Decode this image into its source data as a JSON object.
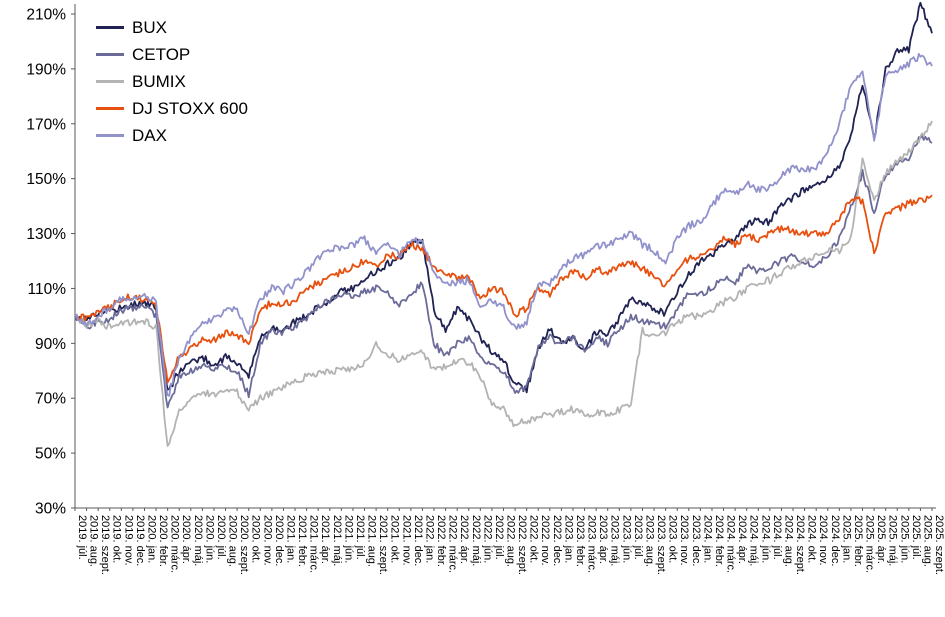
{
  "chart_data": {
    "type": "line",
    "title": "",
    "xlabel": "",
    "ylabel": "",
    "ylim": [
      30,
      210
    ],
    "yticks": [
      30,
      50,
      70,
      90,
      110,
      130,
      150,
      170,
      190,
      210
    ],
    "ytick_suffix": "%",
    "grid": false,
    "legend_position": "top-left",
    "axis_color": "#595959",
    "categories": [
      "2019. júl.",
      "2019. aug.",
      "2019. szept.",
      "2019. okt.",
      "2019. nov.",
      "2019. dec.",
      "2020. jan.",
      "2020. febr.",
      "2020. márc.",
      "2020. ápr.",
      "2020. máj.",
      "2020. jún.",
      "2020. júl.",
      "2020. aug.",
      "2020. szept.",
      "2020. okt.",
      "2020. nov.",
      "2020. dec.",
      "2021. jan.",
      "2021. febr.",
      "2021. márc.",
      "2021. ápr.",
      "2021. máj.",
      "2021. jún.",
      "2021. júl.",
      "2021. aug.",
      "2021. szept.",
      "2021. okt.",
      "2021. nov.",
      "2021. dec.",
      "2022. jan.",
      "2022. febr.",
      "2022. márc.",
      "2022. ápr.",
      "2022. máj.",
      "2022. jún.",
      "2022. júl.",
      "2022. aug.",
      "2022. szept.",
      "2022. okt.",
      "2022. nov.",
      "2022. dec.",
      "2023. jan.",
      "2023. febr.",
      "2023. márc.",
      "2023. ápr.",
      "2023. máj.",
      "2023. jún.",
      "2023. júl.",
      "2023. aug.",
      "2023. szept.",
      "2023. okt.",
      "2023. nov.",
      "2023. dec.",
      "2024. jan.",
      "2024. febr.",
      "2024. márc.",
      "2024. ápr.",
      "2024. máj.",
      "2024. jún.",
      "2024. júl.",
      "2024. aug.",
      "2024. szept.",
      "2024. okt.",
      "2024. nov.",
      "2024. dec.",
      "2025. jan.",
      "2025. febr.",
      "2025. márc.",
      "2025. ápr.",
      "2025. máj.",
      "2025. jún.",
      "2025. júl.",
      "2025. aug.",
      "2025. szept."
    ],
    "series": [
      {
        "name": "BUX",
        "color": "#1F2252",
        "values": [
          100,
          99,
          101,
          102,
          103,
          104,
          105,
          103,
          72,
          80,
          83,
          85,
          82,
          85,
          83,
          78,
          92,
          96,
          95,
          98,
          100,
          103,
          106,
          109,
          110,
          114,
          116,
          119,
          121,
          126,
          128,
          102,
          95,
          103,
          99,
          92,
          87,
          84,
          75,
          73,
          88,
          95,
          90,
          92,
          87,
          94,
          93,
          99,
          106,
          104,
          103,
          101,
          109,
          115,
          120,
          122,
          126,
          128,
          133,
          135,
          134,
          141,
          143,
          146,
          147,
          150,
          154,
          166,
          185,
          164,
          190,
          196,
          197,
          214,
          203
        ]
      },
      {
        "name": "CETOP",
        "color": "#6B6B99",
        "values": [
          100,
          96,
          98,
          99,
          102,
          103,
          104,
          100,
          66,
          78,
          80,
          82,
          80,
          82,
          80,
          71,
          90,
          95,
          94,
          96,
          99,
          103,
          106,
          108,
          107,
          109,
          110,
          108,
          104,
          108,
          112,
          90,
          85,
          90,
          92,
          85,
          82,
          80,
          72,
          74,
          88,
          92,
          90,
          92,
          88,
          92,
          90,
          95,
          100,
          98,
          97,
          96,
          102,
          108,
          108,
          110,
          114,
          112,
          118,
          116,
          118,
          120,
          122,
          120,
          118,
          122,
          128,
          140,
          152,
          138,
          152,
          155,
          158,
          165,
          163
        ]
      },
      {
        "name": "BUMIX",
        "color": "#B3B3B3",
        "values": [
          100,
          97,
          98,
          96,
          97,
          98,
          98,
          96,
          52,
          65,
          70,
          72,
          71,
          73,
          72,
          66,
          70,
          72,
          74,
          76,
          78,
          79,
          80,
          80,
          81,
          83,
          90,
          86,
          84,
          85,
          87,
          80,
          82,
          84,
          83,
          78,
          68,
          66,
          60,
          62,
          63,
          64,
          65,
          66,
          64,
          65,
          64,
          66,
          68,
          95,
          92,
          94,
          98,
          100,
          100,
          102,
          105,
          107,
          110,
          112,
          113,
          116,
          118,
          120,
          122,
          124,
          124,
          128,
          158,
          142,
          152,
          156,
          160,
          165,
          171
        ]
      },
      {
        "name": "DJ STOXX 600",
        "color": "#E8500F",
        "values": [
          100,
          99,
          102,
          103,
          106,
          107,
          106,
          104,
          76,
          85,
          88,
          92,
          91,
          94,
          93,
          90,
          102,
          105,
          104,
          106,
          110,
          112,
          114,
          116,
          118,
          120,
          118,
          122,
          122,
          126,
          124,
          118,
          115,
          114,
          114,
          106,
          110,
          109,
          100,
          103,
          110,
          108,
          114,
          116,
          114,
          117,
          116,
          118,
          120,
          117,
          115,
          111,
          117,
          121,
          122,
          124,
          128,
          126,
          129,
          128,
          130,
          132,
          131,
          130,
          130,
          130,
          136,
          142,
          142,
          123,
          138,
          139,
          141,
          142,
          144
        ]
      },
      {
        "name": "DAX",
        "color": "#9191CC",
        "values": [
          100,
          97,
          100,
          103,
          106,
          107,
          108,
          105,
          70,
          85,
          92,
          98,
          99,
          102,
          102,
          93,
          106,
          110,
          109,
          112,
          116,
          121,
          124,
          125,
          126,
          128,
          123,
          126,
          122,
          128,
          126,
          116,
          112,
          112,
          113,
          104,
          105,
          103,
          95,
          98,
          112,
          112,
          117,
          121,
          122,
          125,
          126,
          128,
          130,
          126,
          124,
          120,
          128,
          133,
          134,
          140,
          146,
          144,
          148,
          146,
          147,
          151,
          154,
          153,
          154,
          160,
          170,
          184,
          190,
          164,
          188,
          190,
          192,
          195,
          191
        ]
      }
    ]
  },
  "legend": {
    "items": [
      "BUX",
      "CETOP",
      "BUMIX",
      "DJ STOXX 600",
      "DAX"
    ]
  }
}
